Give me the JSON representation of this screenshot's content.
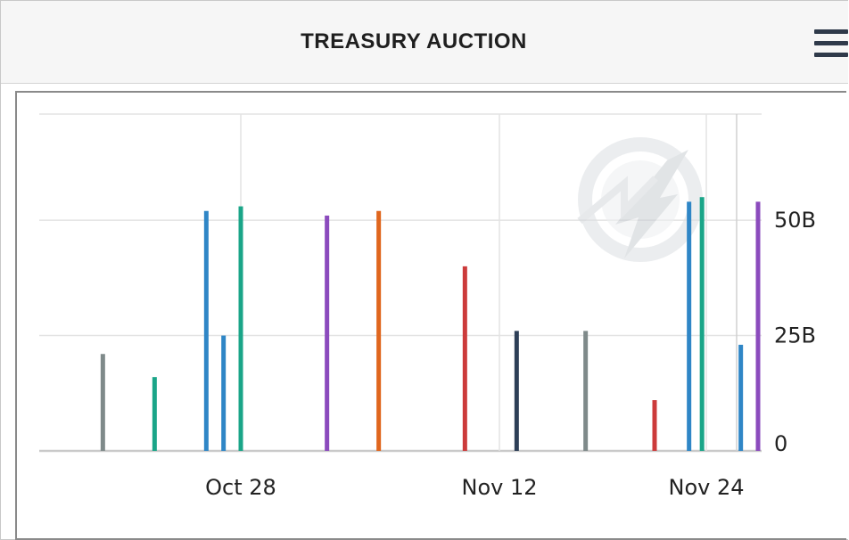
{
  "header": {
    "title": "TREASURY AUCTION",
    "menu_icon": "hamburger-menu-icon"
  },
  "watermark_icon": "quote-lightning-logo-icon",
  "chart_data": {
    "type": "bar",
    "title": "",
    "xlabel": "",
    "ylabel": "",
    "x_tick_labels": [
      "Oct 28",
      "Nov 12",
      "Nov 24"
    ],
    "y_tick_labels": [
      "0",
      "25B",
      "50B"
    ],
    "y_ticks": [
      0,
      25,
      50
    ],
    "ylim": [
      0,
      73
    ],
    "y_axis_side": "right",
    "grid": true,
    "legend": "none",
    "bars": [
      {
        "date": "2023-10-20",
        "value": 21,
        "color": "#7f8a8a"
      },
      {
        "date": "2023-10-23",
        "value": 16,
        "color": "#1aa588"
      },
      {
        "date": "2023-10-26",
        "value": 52,
        "color": "#2f86c6"
      },
      {
        "date": "2023-10-27",
        "value": 25,
        "color": "#2f86c6"
      },
      {
        "date": "2023-10-28",
        "value": 53,
        "color": "#1aa588"
      },
      {
        "date": "2023-11-02",
        "value": 51,
        "color": "#8b4bbd"
      },
      {
        "date": "2023-11-05",
        "value": 52,
        "color": "#e0661e"
      },
      {
        "date": "2023-11-10",
        "value": 40,
        "color": "#cc3b3b"
      },
      {
        "date": "2023-11-13",
        "value": 26,
        "color": "#2d3f57"
      },
      {
        "date": "2023-11-17",
        "value": 26,
        "color": "#7f8a8a"
      },
      {
        "date": "2023-11-21",
        "value": 11,
        "color": "#cc3b3b"
      },
      {
        "date": "2023-11-23",
        "value": 54,
        "color": "#2f86c6"
      },
      {
        "date": "2023-11-23T18:00",
        "value": 55,
        "color": "#1aa588"
      },
      {
        "date": "2023-11-26",
        "value": 23,
        "color": "#2f86c6"
      },
      {
        "date": "2023-11-27",
        "value": 54,
        "color": "#8b4bbd"
      }
    ]
  }
}
